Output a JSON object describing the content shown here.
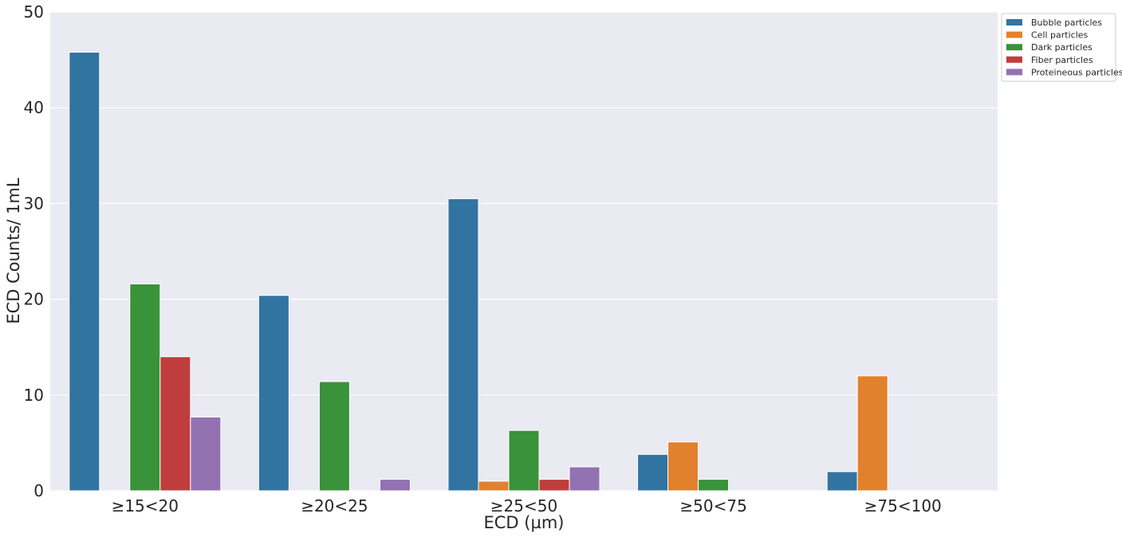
{
  "chart_data": {
    "type": "bar",
    "xlabel": "ECD (µm)",
    "ylabel": "ECD Counts/ 1mL",
    "ylim": [
      0,
      50
    ],
    "yticks": [
      0,
      10,
      20,
      30,
      40,
      50
    ],
    "categories": [
      "≥15<20",
      "≥20<25",
      "≥25<50",
      "≥50<75",
      "≥75<100"
    ],
    "series": [
      {
        "name": "Bubble particles",
        "color": "#3274a1",
        "values": [
          45.8,
          20.4,
          30.5,
          3.8,
          2.0
        ]
      },
      {
        "name": "Cell particles",
        "color": "#e1812c",
        "values": [
          0,
          0,
          1.0,
          5.1,
          12.0
        ]
      },
      {
        "name": "Dark particles",
        "color": "#3a923a",
        "values": [
          21.6,
          11.4,
          6.3,
          1.2,
          0
        ]
      },
      {
        "name": "Fiber particles",
        "color": "#c03d3e",
        "values": [
          14.0,
          0,
          1.2,
          0,
          0
        ]
      },
      {
        "name": "Proteineous particles",
        "color": "#9372b2",
        "values": [
          7.7,
          1.2,
          2.5,
          0,
          0
        ]
      }
    ],
    "grid": true,
    "legend_position": "outside top-right",
    "background": "#eaeaf2"
  }
}
